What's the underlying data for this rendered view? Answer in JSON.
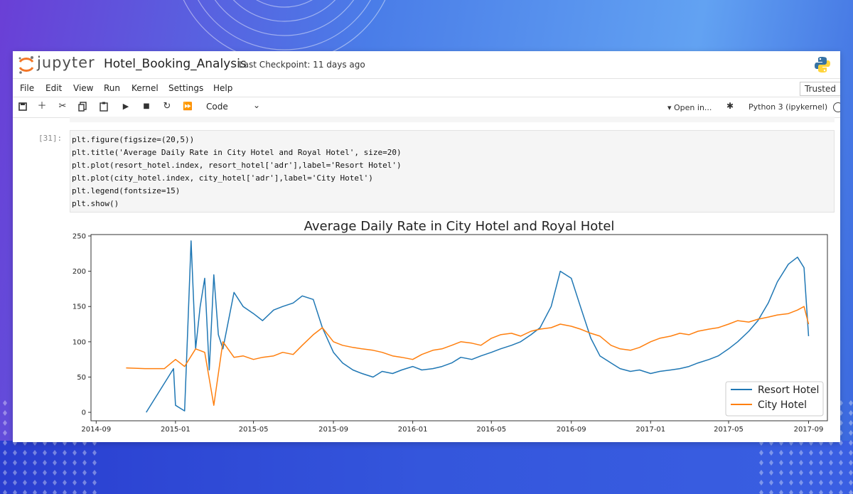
{
  "header": {
    "brand": "jupyter",
    "notebook_title": "Hotel_Booking_Analysis",
    "checkpoint": "Last Checkpoint: 11 days ago"
  },
  "menu": {
    "items": [
      "File",
      "Edit",
      "View",
      "Run",
      "Kernel",
      "Settings",
      "Help"
    ],
    "trusted": "Trusted"
  },
  "toolbar": {
    "icons": [
      "save-icon",
      "add-cell-icon",
      "cut-icon",
      "copy-icon",
      "paste-icon",
      "run-icon",
      "stop-icon",
      "restart-icon",
      "run-all-icon"
    ],
    "cell_type": "Code",
    "open_in": "▾ Open in...",
    "kernel": "Python 3 (ipykernel)"
  },
  "cell": {
    "prompt": "[31]:",
    "code_lines": [
      "plt.figure(figsize=(20,5))",
      "plt.title('Average Daily Rate in City Hotel and Royal Hotel', size=20)",
      "plt.plot(resort_hotel.index, resort_hotel['adr'],label='Resort Hotel')",
      "plt.plot(city_hotel.index, city_hotel['adr'],label='City Hotel')",
      "plt.legend(fontsize=15)",
      "plt.show()"
    ]
  },
  "colors": {
    "resort": "#1f77b4",
    "city": "#ff7f0e"
  },
  "chart_data": {
    "type": "line",
    "title": "Average Daily Rate in City Hotel and Royal Hotel",
    "xlabel": "",
    "ylabel": "",
    "x_ticks": [
      "2014-09",
      "2015-01",
      "2015-05",
      "2015-09",
      "2016-01",
      "2016-05",
      "2016-09",
      "2017-01",
      "2017-05",
      "2017-09"
    ],
    "y_ticks": [
      0,
      50,
      100,
      150,
      200,
      250
    ],
    "xlim": [
      "2014-08-24",
      "2017-09-30"
    ],
    "ylim": [
      -12,
      252
    ],
    "legend_position": "lower-right",
    "series": [
      {
        "name": "Resort Hotel",
        "x": [
          "2014-11-17",
          "2014-12-29",
          "2015-01-01",
          "2015-01-15",
          "2015-01-20",
          "2015-01-25",
          "2015-02-01",
          "2015-02-08",
          "2015-02-15",
          "2015-02-22",
          "2015-03-01",
          "2015-03-08",
          "2015-03-15",
          "2015-04-01",
          "2015-04-15",
          "2015-05-01",
          "2015-05-15",
          "2015-06-01",
          "2015-06-15",
          "2015-07-01",
          "2015-07-15",
          "2015-08-01",
          "2015-08-15",
          "2015-09-01",
          "2015-09-15",
          "2015-10-01",
          "2015-10-15",
          "2015-11-01",
          "2015-11-15",
          "2015-12-01",
          "2015-12-15",
          "2016-01-01",
          "2016-01-15",
          "2016-02-01",
          "2016-02-15",
          "2016-03-01",
          "2016-03-15",
          "2016-04-01",
          "2016-04-15",
          "2016-05-01",
          "2016-05-15",
          "2016-06-01",
          "2016-06-15",
          "2016-07-01",
          "2016-07-15",
          "2016-08-01",
          "2016-08-15",
          "2016-09-01",
          "2016-09-15",
          "2016-10-01",
          "2016-10-15",
          "2016-11-01",
          "2016-11-15",
          "2016-12-01",
          "2016-12-15",
          "2017-01-01",
          "2017-01-15",
          "2017-02-01",
          "2017-02-15",
          "2017-03-01",
          "2017-03-15",
          "2017-04-01",
          "2017-04-15",
          "2017-05-01",
          "2017-05-15",
          "2017-06-01",
          "2017-06-15",
          "2017-07-01",
          "2017-07-15",
          "2017-08-01",
          "2017-08-15",
          "2017-08-25",
          "2017-09-01"
        ],
        "values": [
          0,
          62,
          10,
          2,
          120,
          243,
          90,
          150,
          190,
          60,
          195,
          110,
          90,
          170,
          150,
          140,
          130,
          145,
          150,
          155,
          165,
          160,
          120,
          85,
          70,
          60,
          55,
          50,
          58,
          55,
          60,
          65,
          60,
          62,
          65,
          70,
          78,
          75,
          80,
          85,
          90,
          95,
          100,
          110,
          120,
          150,
          200,
          190,
          150,
          105,
          80,
          70,
          62,
          58,
          60,
          55,
          58,
          60,
          62,
          65,
          70,
          75,
          80,
          90,
          100,
          115,
          130,
          155,
          185,
          210,
          220,
          205,
          108
        ]
      },
      {
        "name": "City Hotel",
        "x": [
          "2014-10-17",
          "2014-11-15",
          "2014-12-15",
          "2015-01-01",
          "2015-01-15",
          "2015-02-01",
          "2015-02-15",
          "2015-03-01",
          "2015-03-15",
          "2015-04-01",
          "2015-04-15",
          "2015-05-01",
          "2015-05-15",
          "2015-06-01",
          "2015-06-15",
          "2015-07-01",
          "2015-07-15",
          "2015-08-01",
          "2015-08-15",
          "2015-09-01",
          "2015-09-15",
          "2015-10-01",
          "2015-10-15",
          "2015-11-01",
          "2015-11-15",
          "2015-12-01",
          "2015-12-15",
          "2016-01-01",
          "2016-01-15",
          "2016-02-01",
          "2016-02-15",
          "2016-03-01",
          "2016-03-15",
          "2016-04-01",
          "2016-04-15",
          "2016-05-01",
          "2016-05-15",
          "2016-06-01",
          "2016-06-15",
          "2016-07-01",
          "2016-07-15",
          "2016-08-01",
          "2016-08-15",
          "2016-09-01",
          "2016-09-15",
          "2016-10-01",
          "2016-10-15",
          "2016-11-01",
          "2016-11-15",
          "2016-12-01",
          "2016-12-15",
          "2017-01-01",
          "2017-01-15",
          "2017-02-01",
          "2017-02-15",
          "2017-03-01",
          "2017-03-15",
          "2017-04-01",
          "2017-04-15",
          "2017-05-01",
          "2017-05-15",
          "2017-06-01",
          "2017-06-15",
          "2017-07-01",
          "2017-07-15",
          "2017-08-01",
          "2017-08-15",
          "2017-08-25",
          "2017-09-01"
        ],
        "values": [
          63,
          62,
          62,
          75,
          65,
          90,
          85,
          10,
          100,
          78,
          80,
          75,
          78,
          80,
          85,
          82,
          95,
          110,
          120,
          100,
          95,
          92,
          90,
          88,
          85,
          80,
          78,
          75,
          82,
          88,
          90,
          95,
          100,
          98,
          95,
          105,
          110,
          112,
          108,
          115,
          118,
          120,
          125,
          122,
          118,
          112,
          108,
          95,
          90,
          88,
          92,
          100,
          105,
          108,
          112,
          110,
          115,
          118,
          120,
          125,
          130,
          128,
          132,
          135,
          138,
          140,
          145,
          150,
          125
        ]
      }
    ]
  }
}
